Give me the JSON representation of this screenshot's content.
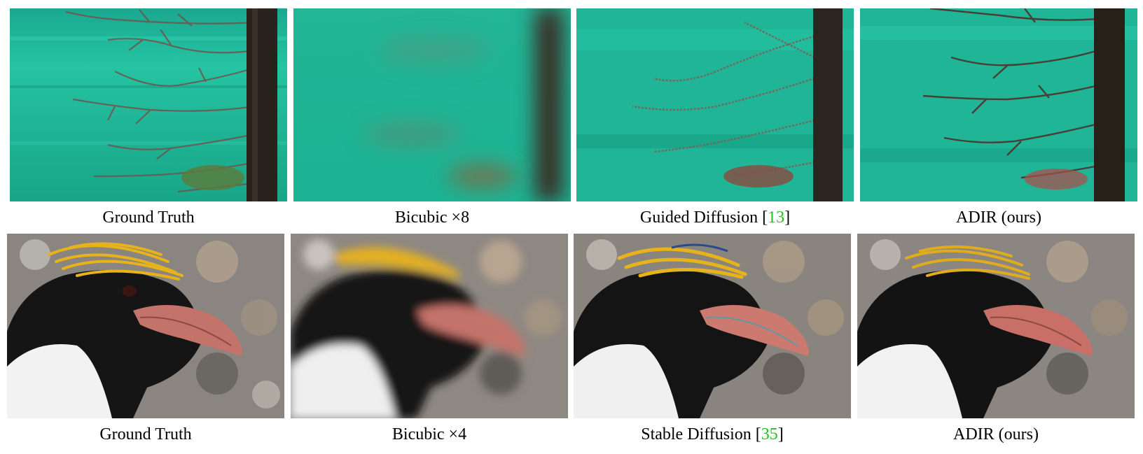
{
  "figure": {
    "row1": {
      "captions": [
        {
          "text": "Ground Truth",
          "cite": ""
        },
        {
          "text": "Bicubic ×8",
          "cite": ""
        },
        {
          "text": "Guided Diffusion [",
          "cite": "13",
          "end": "]"
        },
        {
          "text": "ADIR (ours)",
          "cite": ""
        }
      ]
    },
    "row2": {
      "captions": [
        {
          "text": "Ground Truth",
          "cite": ""
        },
        {
          "text": "Bicubic ×4",
          "cite": ""
        },
        {
          "text": "Stable Diffusion [",
          "cite": "35",
          "end": "]"
        },
        {
          "text": "ADIR (ours)",
          "cite": ""
        }
      ]
    },
    "colors": {
      "water": "#1fb89a",
      "water_dark": "#129a7e",
      "trunk": "#2a221d",
      "branch": "#6b5a52",
      "feather": "#e8b21a",
      "penguin_black": "#151515",
      "beak": "#c4736a",
      "rock_bg": "#8a8580",
      "citation": "#22c01d"
    }
  }
}
